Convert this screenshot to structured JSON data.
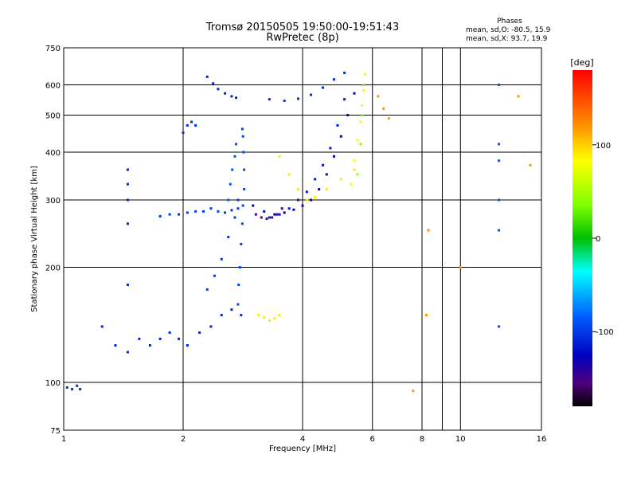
{
  "chart_data": {
    "type": "scatter",
    "title": "Tromsø 20150505 19:50:00-19:51:43",
    "subtitle": "RwPretec (8p)",
    "xlabel": "Frequency [MHz]",
    "ylabel": "Stationary phase Virtual Height [km]",
    "x_scale": "log",
    "y_scale": "log",
    "xlim": [
      1,
      16
    ],
    "ylim": [
      75,
      750
    ],
    "x_ticks": [
      1,
      2,
      4,
      6,
      8,
      10,
      16
    ],
    "y_ticks": [
      75,
      100,
      200,
      300,
      400,
      500,
      600,
      750
    ],
    "x_grid": [
      2,
      4,
      6,
      8,
      9,
      10
    ],
    "y_grid": [
      100,
      200,
      300,
      400,
      500,
      600
    ],
    "colorbar": {
      "label": "[deg]",
      "range": [
        -180,
        180
      ],
      "ticks": [
        100,
        0,
        -100
      ]
    },
    "phase_info": {
      "title": "Phases",
      "line1": "mean, sd,O: -80.5, 15.9",
      "line2": "mean, sd,X: 93.7, 19.9"
    },
    "series": [
      {
        "x": [
          1.25,
          1.35,
          1.45,
          1.55,
          1.65,
          1.75,
          1.85,
          1.95,
          2.05,
          2.2,
          2.35,
          2.5,
          2.65,
          2.8
        ],
        "y": [
          140,
          125,
          120,
          130,
          125,
          130,
          135,
          130,
          125,
          135,
          140,
          150,
          155,
          150
        ],
        "phase": -110
      },
      {
        "x": [
          2.75,
          2.76,
          2.78,
          2.8,
          2.82,
          2.83,
          2.85,
          2.85,
          2.84,
          2.83,
          2.82
        ],
        "y": [
          160,
          180,
          200,
          230,
          260,
          290,
          320,
          360,
          400,
          440,
          460
        ],
        "phase": -95
      },
      {
        "x": [
          2.3,
          2.4,
          2.5,
          2.6,
          2.7,
          2.75
        ],
        "y": [
          175,
          190,
          210,
          240,
          270,
          300
        ],
        "phase": -100
      },
      {
        "x": [
          1.75,
          1.85,
          1.95,
          2.05,
          2.15,
          2.25,
          2.35,
          2.45,
          2.55,
          2.65,
          2.75
        ],
        "y": [
          272,
          275,
          275,
          278,
          280,
          280,
          285,
          280,
          278,
          282,
          285
        ],
        "phase": -100
      },
      {
        "x": [
          2.6,
          2.63,
          2.66,
          2.7,
          2.72
        ],
        "y": [
          300,
          330,
          360,
          390,
          420
        ],
        "phase": -90
      },
      {
        "x": [
          2.0,
          2.05,
          2.1,
          2.15
        ],
        "y": [
          450,
          470,
          480,
          470
        ],
        "phase": -105
      },
      {
        "x": [
          2.3,
          2.38,
          2.45,
          2.55,
          2.65,
          2.72
        ],
        "y": [
          630,
          605,
          585,
          570,
          560,
          555
        ],
        "phase": -110
      },
      {
        "x": [
          3.0,
          3.2,
          3.4,
          3.6,
          3.8,
          4.0,
          4.2,
          4.4,
          4.6,
          4.8,
          5.0,
          5.2,
          5.4
        ],
        "y": [
          290,
          280,
          275,
          278,
          283,
          290,
          300,
          320,
          350,
          390,
          440,
          500,
          570
        ],
        "phase": -130
      },
      {
        "x": [
          3.05,
          3.15,
          3.25,
          3.35,
          3.45,
          3.55
        ],
        "y": [
          275,
          270,
          268,
          270,
          275,
          285
        ],
        "phase": -150
      },
      {
        "x": [
          3.3,
          3.5,
          3.7,
          3.9,
          4.1,
          4.3,
          4.5,
          4.7,
          4.9,
          5.1
        ],
        "y": [
          270,
          275,
          285,
          300,
          315,
          340,
          370,
          410,
          470,
          550
        ],
        "phase": -115
      },
      {
        "x": [
          3.3,
          3.6,
          3.9,
          4.2,
          4.5,
          4.8,
          5.1
        ],
        "y": [
          550,
          545,
          552,
          565,
          590,
          620,
          645
        ],
        "phase": -105
      },
      {
        "x": [
          3.5,
          3.7,
          3.9,
          4.1,
          4.3,
          4.6,
          5.0,
          5.4
        ],
        "y": [
          390,
          350,
          320,
          300,
          305,
          320,
          340,
          360
        ],
        "phase": 90
      },
      {
        "x": [
          5.3,
          5.4,
          5.5,
          5.6,
          5.65,
          5.7,
          5.75
        ],
        "y": [
          330,
          380,
          430,
          480,
          530,
          580,
          640
        ],
        "phase": 85
      },
      {
        "x": [
          5.5,
          5.6,
          5.65,
          5.7
        ],
        "y": [
          350,
          420,
          500,
          600
        ],
        "phase": 40
      },
      {
        "x": [
          3.1,
          3.2,
          3.3,
          3.4,
          3.5
        ],
        "y": [
          150,
          148,
          145,
          147,
          150
        ],
        "phase": 90
      },
      {
        "x": [
          1.02,
          1.05,
          1.08,
          1.1
        ],
        "y": [
          97,
          96,
          98,
          96
        ],
        "phase": -105
      },
      {
        "x": [
          1.45,
          1.45,
          1.45,
          1.45,
          1.45
        ],
        "y": [
          360,
          330,
          300,
          260,
          180
        ],
        "phase": -110
      },
      {
        "x": [
          12.5,
          12.5,
          12.5,
          12.5,
          12.5,
          12.5
        ],
        "y": [
          600,
          420,
          380,
          300,
          250,
          140
        ],
        "phase": -90
      },
      {
        "x": [
          6.2,
          6.4,
          6.6,
          7.6,
          8.2,
          8.3,
          10.0,
          14.0,
          15.0
        ],
        "y": [
          560,
          520,
          490,
          95,
          150,
          250,
          200,
          560,
          370
        ],
        "phase": 120
      }
    ]
  }
}
